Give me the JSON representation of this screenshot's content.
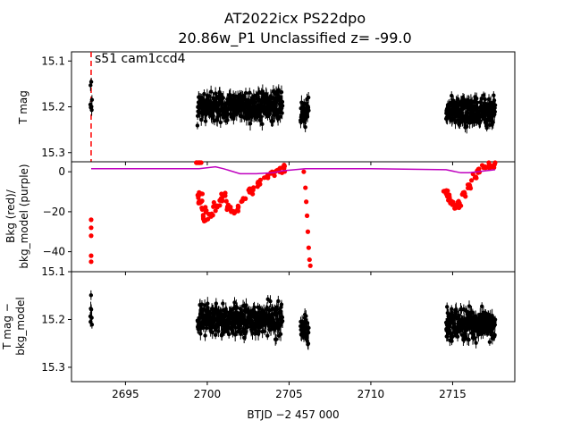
{
  "figure": {
    "title_line1": "AT2022icx  PS22dpo",
    "title_line2": "20.86w_P1 Unclassified z= -99.0",
    "annotation": "s51 cam1ccd4",
    "xlabel": "BTJD −2 457 000"
  },
  "chart_data": [
    {
      "type": "scatter",
      "name": "top",
      "ylabel": "T mag",
      "ylim": [
        15.32,
        15.08
      ],
      "inverted": true,
      "yticks": [
        "15.1",
        "15.2",
        "15.3"
      ],
      "ytick_values": [
        15.1,
        15.2,
        15.3
      ],
      "vline_x": 2692.9,
      "vline_color": "#ff0000",
      "point_color": "#000000",
      "segments": [
        {
          "x_start": 2692.85,
          "x_end": 2692.95,
          "n": 8,
          "center": 15.18,
          "spread": 0.06
        },
        {
          "x_start": 2699.4,
          "x_end": 2704.6,
          "n": 420,
          "center": 15.2,
          "spread": 0.045
        },
        {
          "x_start": 2705.7,
          "x_end": 2706.2,
          "n": 40,
          "center": 15.21,
          "spread": 0.04
        },
        {
          "x_start": 2714.6,
          "x_end": 2717.6,
          "n": 260,
          "center": 15.21,
          "spread": 0.045
        }
      ]
    },
    {
      "type": "scatter",
      "name": "middle",
      "ylabel": "Bkg (red)/\nbkg_model (purple)",
      "ylim": [
        -50,
        5
      ],
      "yticks": [
        "0",
        "−20",
        "−40"
      ],
      "ytick_values": [
        0,
        -20,
        -40
      ],
      "series": [
        {
          "name": "Bkg",
          "color": "#ff0000",
          "points": [
            [
              2692.9,
              -24
            ],
            [
              2692.9,
              -28
            ],
            [
              2692.9,
              -32
            ],
            [
              2692.9,
              -42
            ],
            [
              2692.9,
              -45
            ],
            [
              2699.45,
              6
            ],
            [
              2699.5,
              8
            ],
            [
              2699.55,
              -12
            ],
            [
              2699.6,
              -15
            ],
            [
              2699.8,
              -20
            ],
            [
              2699.9,
              -24
            ],
            [
              2700.2,
              -22
            ],
            [
              2700.5,
              -18
            ],
            [
              2700.8,
              -15
            ],
            [
              2701.0,
              -12
            ],
            [
              2701.3,
              -17
            ],
            [
              2701.6,
              -20
            ],
            [
              2701.9,
              -18
            ],
            [
              2702.2,
              -14
            ],
            [
              2702.5,
              -10
            ],
            [
              2702.8,
              -9
            ],
            [
              2703.2,
              -6
            ],
            [
              2703.6,
              -3
            ],
            [
              2704.0,
              -1
            ],
            [
              2704.3,
              1
            ],
            [
              2704.6,
              2
            ],
            [
              2705.9,
              0
            ],
            [
              2706.0,
              -8
            ],
            [
              2706.05,
              -15
            ],
            [
              2706.1,
              -22
            ],
            [
              2706.15,
              -30
            ],
            [
              2706.2,
              -38
            ],
            [
              2706.25,
              -44
            ],
            [
              2706.3,
              -47
            ],
            [
              2714.6,
              -10
            ],
            [
              2714.8,
              -13
            ],
            [
              2715.0,
              -16
            ],
            [
              2715.2,
              -18
            ],
            [
              2715.4,
              -16
            ],
            [
              2715.7,
              -12
            ],
            [
              2716.0,
              -7
            ],
            [
              2716.3,
              -3
            ],
            [
              2716.6,
              0
            ],
            [
              2716.9,
              2
            ],
            [
              2717.2,
              3
            ],
            [
              2717.5,
              3
            ]
          ]
        },
        {
          "name": "bkg_model",
          "color": "#bf00bf",
          "points": [
            [
              2692.9,
              1.5
            ],
            [
              2695.0,
              1.5
            ],
            [
              2699.5,
              1.5
            ],
            [
              2700.5,
              2.5
            ],
            [
              2701.0,
              1.5
            ],
            [
              2702.0,
              -1.0
            ],
            [
              2703.0,
              -1.0
            ],
            [
              2704.0,
              -0.5
            ],
            [
              2704.6,
              0.5
            ],
            [
              2706.0,
              1.5
            ],
            [
              2710.0,
              1.5
            ],
            [
              2714.6,
              1.0
            ],
            [
              2715.5,
              -0.5
            ],
            [
              2716.0,
              -0.5
            ],
            [
              2717.0,
              0.5
            ],
            [
              2717.6,
              1.0
            ]
          ]
        }
      ]
    },
    {
      "type": "scatter",
      "name": "bottom",
      "ylabel": "T mag −\nbkg_model",
      "ylim": [
        15.33,
        15.1
      ],
      "inverted": true,
      "yticks": [
        "15.1",
        "15.2",
        "15.3"
      ],
      "ytick_values": [
        15.1,
        15.2,
        15.3
      ],
      "point_color": "#000000",
      "segments": [
        {
          "x_start": 2692.85,
          "x_end": 2692.95,
          "n": 8,
          "center": 15.19,
          "spread": 0.06
        },
        {
          "x_start": 2699.4,
          "x_end": 2704.6,
          "n": 420,
          "center": 15.2,
          "spread": 0.045
        },
        {
          "x_start": 2705.7,
          "x_end": 2706.2,
          "n": 40,
          "center": 15.22,
          "spread": 0.04
        },
        {
          "x_start": 2714.6,
          "x_end": 2717.6,
          "n": 260,
          "center": 15.21,
          "spread": 0.045
        }
      ]
    }
  ],
  "xaxis": {
    "xlim": [
      2691.7,
      2718.8
    ],
    "xticks": [
      "2695",
      "2700",
      "2705",
      "2710",
      "2715"
    ],
    "xtick_values": [
      2695,
      2700,
      2705,
      2710,
      2715
    ]
  }
}
